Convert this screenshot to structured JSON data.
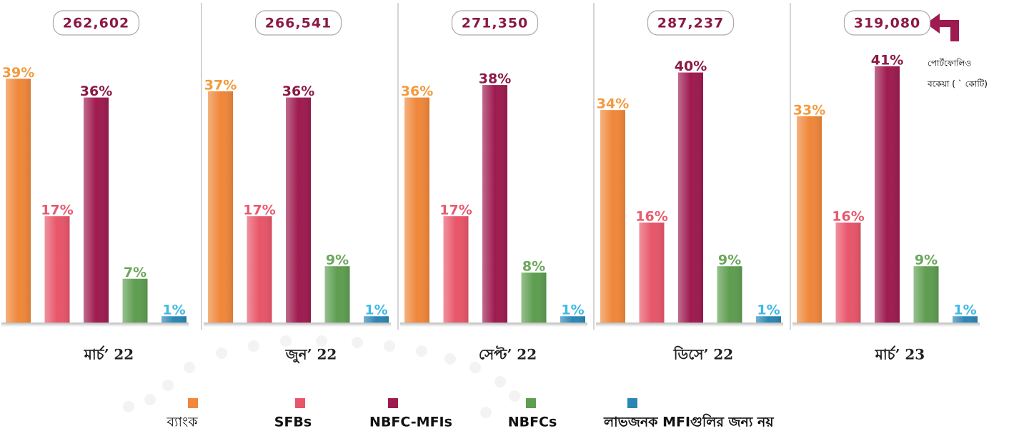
{
  "chart_data": {
    "type": "bar",
    "categories": [
      "মার্চ’ 22",
      "জুন’ 22",
      "সেপ্ট’ 22",
      "ডিসে’ 22",
      "মার্চ’ 23"
    ],
    "totals": [
      262602,
      266541,
      271350,
      287237,
      319080
    ],
    "total_labels": [
      "262,602",
      "266,541",
      "271,350",
      "287,237",
      "319,080"
    ],
    "annotation": [
      "পোর্টফোলিও",
      "বকেয়া ( ` কোটি)"
    ],
    "series": [
      {
        "name": "ব্যাংক",
        "color": "#f0873a",
        "label_color": "#f39a3c",
        "values": [
          39,
          37,
          36,
          34,
          33
        ],
        "value_labels": [
          "39%",
          "37%",
          "36%",
          "34%",
          "33%"
        ]
      },
      {
        "name": "SFBs",
        "color": "#e8566a",
        "label_color": "#e85a6e",
        "values": [
          17,
          17,
          17,
          16,
          16
        ],
        "value_labels": [
          "17%",
          "17%",
          "17%",
          "16%",
          "16%"
        ]
      },
      {
        "name": "NBFC-MFIs",
        "color": "#9e1b50",
        "label_color": "#8b1a45",
        "values": [
          36,
          36,
          38,
          40,
          41
        ],
        "value_labels": [
          "36%",
          "36%",
          "38%",
          "40%",
          "41%"
        ]
      },
      {
        "name": "NBFCs",
        "color": "#5e9e50",
        "label_color": "#6aa85a",
        "values": [
          7,
          9,
          8,
          9,
          9
        ],
        "value_labels": [
          "7%",
          "9%",
          "8%",
          "9%",
          "9%"
        ]
      },
      {
        "name": "লাভজনক MFIগুলির জন্য নয়",
        "color": "#2a86b3",
        "label_color": "#3fb9e6",
        "values": [
          1,
          1,
          1,
          1,
          1
        ],
        "value_labels": [
          "1%",
          "1%",
          "1%",
          "1%",
          "1%"
        ]
      }
    ]
  }
}
